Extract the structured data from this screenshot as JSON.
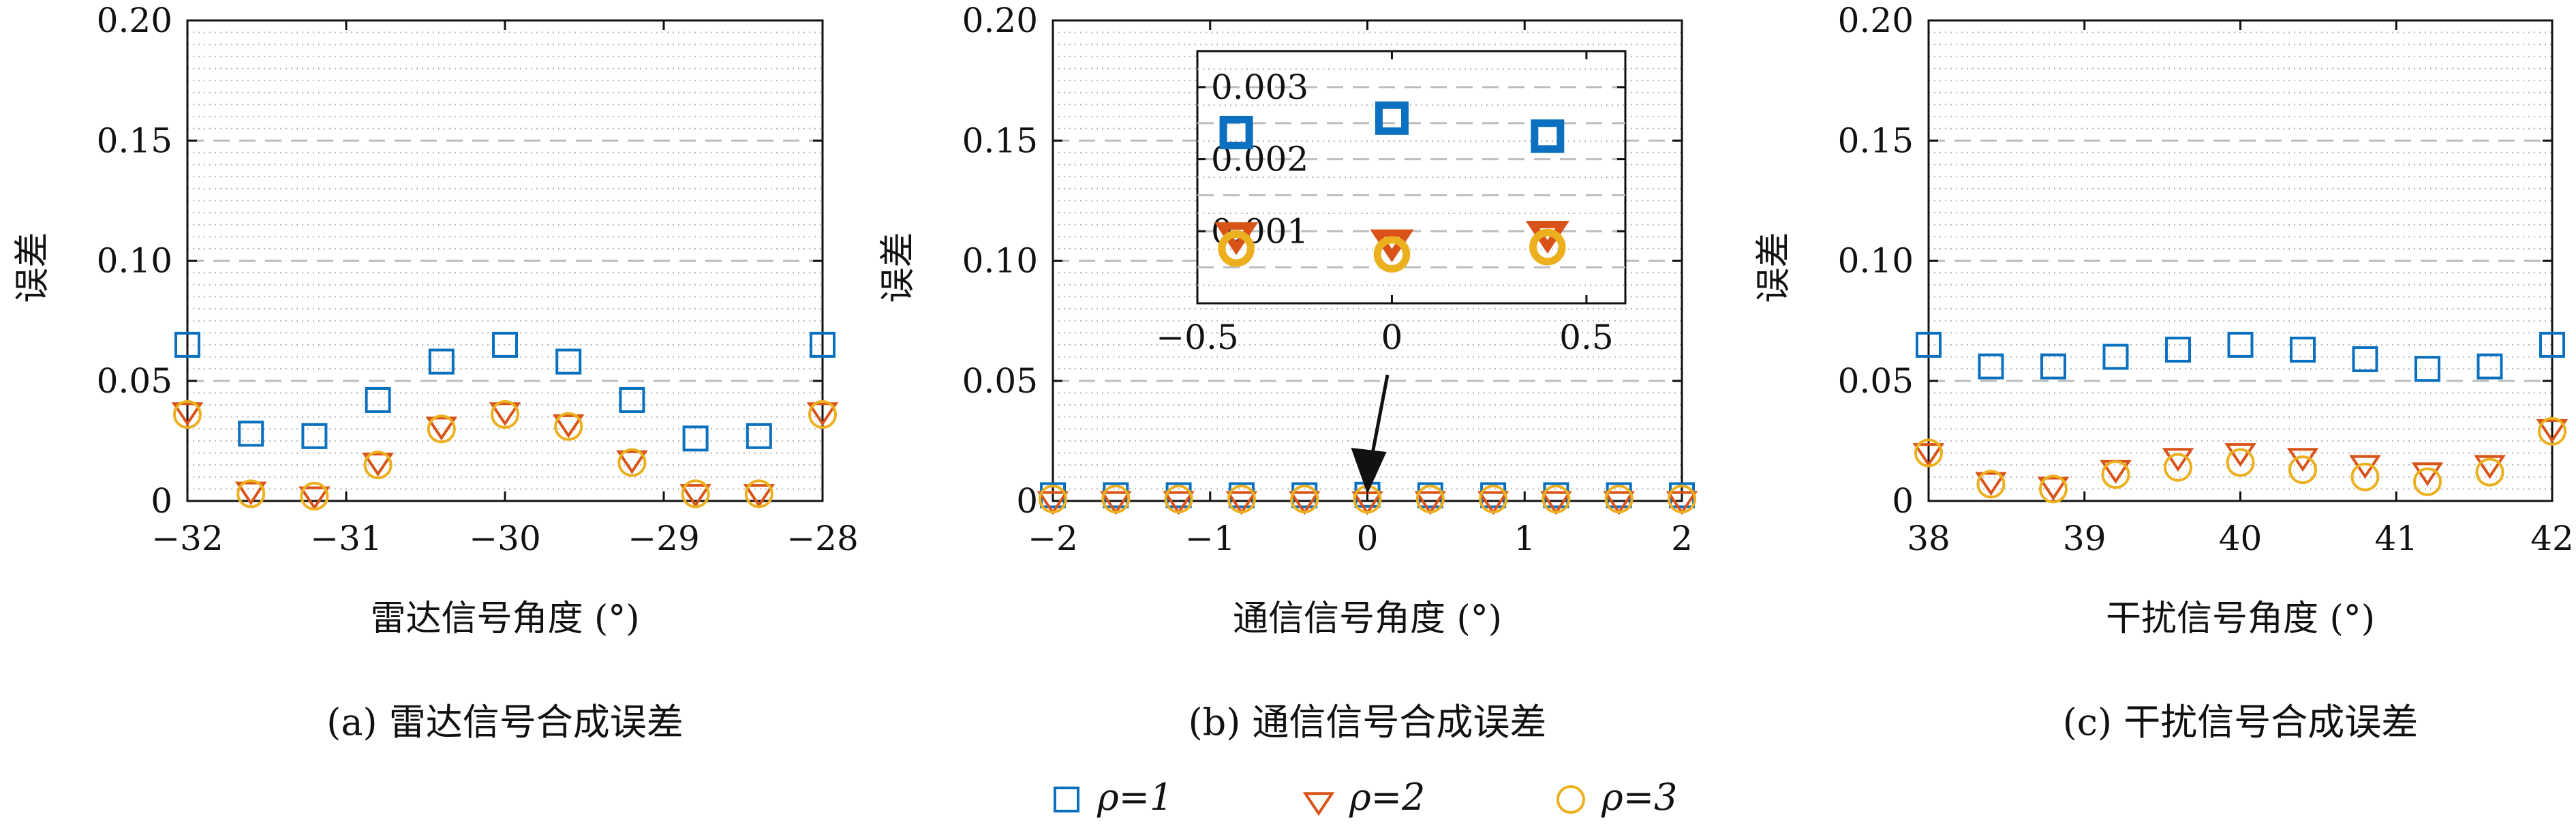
{
  "colors": {
    "rho1": "#0a70bf",
    "rho2": "#d95318",
    "rho3": "#ecb01f"
  },
  "legend": {
    "items": [
      {
        "label": "ρ=1",
        "marker": "square"
      },
      {
        "label": "ρ=2",
        "marker": "triangle-down"
      },
      {
        "label": "ρ=3",
        "marker": "circle"
      }
    ]
  },
  "chart_data": [
    {
      "type": "scatter",
      "caption": "(a) 雷达信号合成误差",
      "xlabel": "雷达信号角度 (°)",
      "ylabel": "误差",
      "xlim": [
        -32,
        -28
      ],
      "ylim": [
        0,
        0.2
      ],
      "xticks": [
        -32,
        -31,
        -30,
        -29,
        -28
      ],
      "xtick_labels": [
        "−32",
        "−31",
        "−30",
        "−29",
        "−28"
      ],
      "yticks": [
        0,
        0.05,
        0.1,
        0.15,
        0.2
      ],
      "ytick_labels": [
        "0",
        "0.05",
        "0.10",
        "0.15",
        "0.20"
      ],
      "grid": "dashed major, dotted minor",
      "x": [
        -32,
        -31.6,
        -31.2,
        -30.8,
        -30.4,
        -30,
        -29.6,
        -29.2,
        -28.8,
        -28.4,
        -28
      ],
      "series": [
        {
          "legend_index": 0,
          "values": [
            0.065,
            0.028,
            0.027,
            0.042,
            0.058,
            0.065,
            0.058,
            0.042,
            0.026,
            0.027,
            0.065
          ]
        },
        {
          "legend_index": 1,
          "values": [
            0.038,
            0.005,
            0.003,
            0.017,
            0.032,
            0.038,
            0.033,
            0.018,
            0.004,
            0.004,
            0.038
          ]
        },
        {
          "legend_index": 2,
          "values": [
            0.036,
            0.003,
            0.002,
            0.015,
            0.03,
            0.036,
            0.031,
            0.016,
            0.003,
            0.003,
            0.036
          ]
        }
      ]
    },
    {
      "type": "scatter",
      "caption": "(b) 通信信号合成误差",
      "xlabel": "通信信号角度 (°)",
      "ylabel": "误差",
      "xlim": [
        -2,
        2
      ],
      "ylim": [
        0,
        0.2
      ],
      "xticks": [
        -2,
        -1,
        0,
        1,
        2
      ],
      "xtick_labels": [
        "−2",
        "−1",
        "0",
        "1",
        "2"
      ],
      "yticks": [
        0,
        0.05,
        0.1,
        0.15,
        0.2
      ],
      "ytick_labels": [
        "0",
        "0.05",
        "0.10",
        "0.15",
        "0.20"
      ],
      "grid": "dashed major, dotted minor",
      "x": [
        -2,
        -1.6,
        -1.2,
        -0.8,
        -0.4,
        0,
        0.4,
        0.8,
        1.2,
        1.6,
        2
      ],
      "series": [
        {
          "legend_index": 0,
          "values": [
            0.0024,
            0.0024,
            0.0024,
            0.0024,
            0.0024,
            0.0026,
            0.0024,
            0.0024,
            0.0024,
            0.0024,
            0.0024
          ]
        },
        {
          "legend_index": 1,
          "values": [
            0.001,
            0.001,
            0.001,
            0.001,
            0.001,
            0.0009,
            0.001,
            0.001,
            0.001,
            0.001,
            0.001
          ]
        },
        {
          "legend_index": 2,
          "values": [
            0.0008,
            0.0008,
            0.0008,
            0.0008,
            0.0008,
            0.0007,
            0.0008,
            0.0008,
            0.0008,
            0.0008,
            0.0008
          ]
        }
      ],
      "inset": {
        "xlim": [
          -0.5,
          0.6
        ],
        "ylim": [
          0,
          0.0035
        ],
        "xticks": [
          -0.5,
          0,
          0.5
        ],
        "xtick_labels": [
          "−0.5",
          "0",
          "0.5"
        ],
        "yticks": [
          0.001,
          0.002,
          0.003
        ],
        "ytick_labels": [
          "0.001",
          "0.002",
          "0.003"
        ],
        "x": [
          -0.4,
          0,
          0.4
        ],
        "series": [
          {
            "legend_index": 0,
            "values": [
              0.00237,
              0.00257,
              0.00232
            ]
          },
          {
            "legend_index": 1,
            "values": [
              0.00098,
              0.00088,
              0.001
            ]
          },
          {
            "legend_index": 2,
            "values": [
              0.00076,
              0.00068,
              0.00078
            ]
          }
        ]
      }
    },
    {
      "type": "scatter",
      "caption": "(c) 干扰信号合成误差",
      "xlabel": "干扰信号角度 (°)",
      "ylabel": "误差",
      "xlim": [
        38,
        42
      ],
      "ylim": [
        0,
        0.2
      ],
      "xticks": [
        38,
        39,
        40,
        41,
        42
      ],
      "xtick_labels": [
        "38",
        "39",
        "40",
        "41",
        "42"
      ],
      "yticks": [
        0,
        0.05,
        0.1,
        0.15,
        0.2
      ],
      "ytick_labels": [
        "0",
        "0.05",
        "0.10",
        "0.15",
        "0.20"
      ],
      "grid": "dashed major, dotted minor",
      "x": [
        38,
        38.4,
        38.8,
        39.2,
        39.6,
        40,
        40.4,
        40.8,
        41.2,
        41.6,
        42
      ],
      "series": [
        {
          "legend_index": 0,
          "values": [
            0.065,
            0.056,
            0.056,
            0.06,
            0.063,
            0.065,
            0.063,
            0.059,
            0.055,
            0.056,
            0.065
          ]
        },
        {
          "legend_index": 1,
          "values": [
            0.021,
            0.009,
            0.007,
            0.014,
            0.019,
            0.021,
            0.019,
            0.016,
            0.013,
            0.016,
            0.031
          ]
        },
        {
          "legend_index": 2,
          "values": [
            0.02,
            0.007,
            0.005,
            0.011,
            0.014,
            0.016,
            0.013,
            0.01,
            0.008,
            0.012,
            0.029
          ]
        }
      ]
    }
  ]
}
